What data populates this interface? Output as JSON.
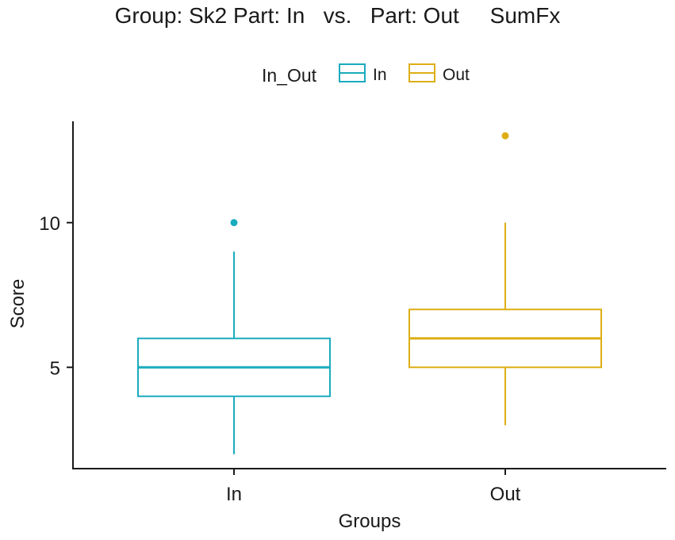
{
  "chart_data": {
    "type": "boxplot",
    "title": "Group: Sk2 Part: In   vs.   Part: Out     SumFx",
    "xlabel": "Groups",
    "ylabel": "Score",
    "ylim": [
      1.5,
      13.5
    ],
    "yticks": [
      5,
      10
    ],
    "categories": [
      "In",
      "Out"
    ],
    "legend": {
      "title": "In_Out",
      "position": "top",
      "entries": [
        "In",
        "Out"
      ]
    },
    "series": [
      {
        "name": "In",
        "color": "#1AABBE",
        "whisker_low": 2,
        "q1": 4,
        "median": 5,
        "q3": 6,
        "whisker_high": 9,
        "outliers": [
          10
        ]
      },
      {
        "name": "Out",
        "color": "#DDAE14",
        "whisker_low": 3,
        "q1": 5,
        "median": 6,
        "q3": 7,
        "whisker_high": 10,
        "outliers": [
          13
        ]
      }
    ],
    "grid": false
  }
}
